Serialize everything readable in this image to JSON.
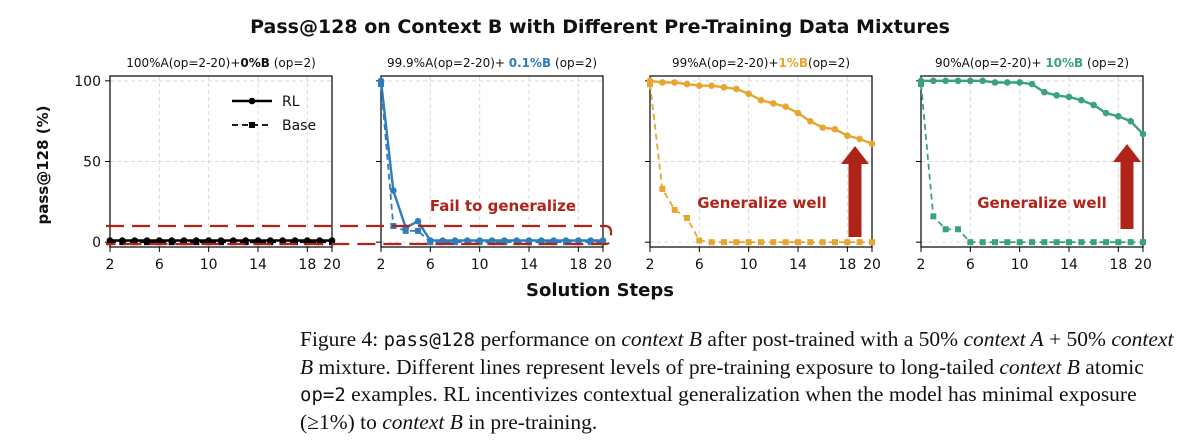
{
  "figure": {
    "suptitle": "Pass@128 on Context B with Different Pre-Training Data Mixtures",
    "xlabel": "Solution Steps",
    "ylabel": "pass@128 (%)"
  },
  "legend": {
    "rl": "RL",
    "base": "Base"
  },
  "colors": {
    "black": "#000000",
    "blue": "#2e7dbd",
    "orange": "#e6a630",
    "green": "#3aa37a",
    "red": "#b02318"
  },
  "chart_data": [
    {
      "type": "line",
      "title_parts": [
        {
          "text": "100%A(op=2-20)+",
          "style": "normal"
        },
        {
          "text": "0%B",
          "style": "bold"
        },
        {
          "text": " (op=2)",
          "style": "normal"
        }
      ],
      "color": "#000000",
      "x": [
        2,
        3,
        4,
        5,
        6,
        7,
        8,
        9,
        10,
        11,
        12,
        13,
        14,
        15,
        16,
        17,
        18,
        19,
        20
      ],
      "series": [
        {
          "name": "RL",
          "values": [
            1,
            1,
            1,
            1,
            1,
            1,
            1,
            1,
            1,
            1,
            1,
            1,
            1,
            1,
            1,
            1,
            1,
            1,
            1
          ]
        },
        {
          "name": "Base",
          "values": [
            0,
            0,
            0,
            0,
            0,
            0,
            0,
            0,
            0,
            0,
            0,
            0,
            0,
            0,
            0,
            0,
            0,
            0,
            0
          ]
        }
      ],
      "xticks": [
        2,
        6,
        10,
        14,
        18,
        20
      ],
      "yticks": [
        0,
        50,
        100
      ],
      "xlim": [
        2,
        20
      ],
      "ylim": [
        -3,
        103
      ],
      "grid": true,
      "legend": "top-center"
    },
    {
      "type": "line",
      "title_parts": [
        {
          "text": "99.9%A(op=2-20)+ ",
          "style": "normal"
        },
        {
          "text": "0.1%B",
          "style": "accent"
        },
        {
          "text": " (op=2)",
          "style": "normal"
        }
      ],
      "color": "#2e7dbd",
      "x": [
        2,
        3,
        4,
        5,
        6,
        7,
        8,
        9,
        10,
        11,
        12,
        13,
        14,
        15,
        16,
        17,
        18,
        19,
        20
      ],
      "series": [
        {
          "name": "RL",
          "values": [
            100,
            32,
            9,
            13,
            1,
            1,
            1,
            1,
            1,
            1,
            1,
            1,
            1,
            1,
            1,
            1,
            1,
            1,
            1
          ]
        },
        {
          "name": "Base",
          "values": [
            98,
            10,
            7,
            7,
            0,
            0,
            0,
            0,
            0,
            0,
            0,
            0,
            0,
            0,
            0,
            0,
            0,
            0,
            0
          ]
        }
      ],
      "xticks": [
        2,
        6,
        10,
        14,
        18,
        20
      ],
      "yticks": [
        0,
        50,
        100
      ],
      "xlim": [
        2,
        20
      ],
      "ylim": [
        -3,
        103
      ],
      "grid": true,
      "annotation": "Fail to generalize"
    },
    {
      "type": "line",
      "title_parts": [
        {
          "text": "99%A(op=2-20)+",
          "style": "normal"
        },
        {
          "text": "1%B",
          "style": "accent"
        },
        {
          "text": "(op=2)",
          "style": "normal"
        }
      ],
      "color": "#e6a630",
      "x": [
        2,
        3,
        4,
        5,
        6,
        7,
        8,
        9,
        10,
        11,
        12,
        13,
        14,
        15,
        16,
        17,
        18,
        19,
        20
      ],
      "series": [
        {
          "name": "RL",
          "values": [
            100,
            99,
            99,
            98,
            97,
            97,
            96,
            95,
            92,
            88,
            86,
            84,
            80,
            75,
            71,
            70,
            66,
            64,
            61
          ]
        },
        {
          "name": "Base",
          "values": [
            98,
            33,
            20,
            15,
            1,
            0,
            0,
            0,
            0,
            0,
            0,
            0,
            0,
            0,
            0,
            0,
            0,
            0,
            0
          ]
        }
      ],
      "xticks": [
        2,
        6,
        10,
        14,
        18,
        20
      ],
      "yticks": [
        0,
        50,
        100
      ],
      "xlim": [
        2,
        20
      ],
      "ylim": [
        -3,
        103
      ],
      "grid": true,
      "annotation": "Generalize well"
    },
    {
      "type": "line",
      "title_parts": [
        {
          "text": "90%A(op=2-20)+ ",
          "style": "normal"
        },
        {
          "text": "10%B",
          "style": "accent"
        },
        {
          "text": " (op=2)",
          "style": "normal"
        }
      ],
      "color": "#3aa37a",
      "x": [
        2,
        3,
        4,
        5,
        6,
        7,
        8,
        9,
        10,
        11,
        12,
        13,
        14,
        15,
        16,
        17,
        18,
        19,
        20
      ],
      "series": [
        {
          "name": "RL",
          "values": [
            100,
            100,
            100,
            100,
            100,
            100,
            99,
            99,
            99,
            98,
            93,
            91,
            90,
            88,
            85,
            80,
            78,
            75,
            67
          ]
        },
        {
          "name": "Base",
          "values": [
            98,
            16,
            8,
            8,
            0,
            0,
            0,
            0,
            0,
            0,
            0,
            0,
            0,
            0,
            0,
            0,
            0,
            0,
            0
          ]
        }
      ],
      "xticks": [
        2,
        6,
        10,
        14,
        18,
        20
      ],
      "yticks": [
        0,
        50,
        100
      ],
      "xlim": [
        2,
        20
      ],
      "ylim": [
        -3,
        103
      ],
      "grid": true,
      "annotation": "Generalize well"
    }
  ],
  "caption": {
    "prefix": "Figure 4: ",
    "metric": "pass@128",
    "t1": " performance on ",
    "ctxB": "context B",
    "t2": " after post-trained with a 50% ",
    "ctxA": "context A",
    "t3": " + 50% ",
    "t4": " mixture. Different lines represent levels of pre-training exposure to long-tailed ",
    "t5": " atomic ",
    "op": "op=2",
    "t6": " examples.  RL incentivizes contextual generalization when the model has minimal exposure (≥1%) to ",
    "t7": " in pre-training."
  }
}
